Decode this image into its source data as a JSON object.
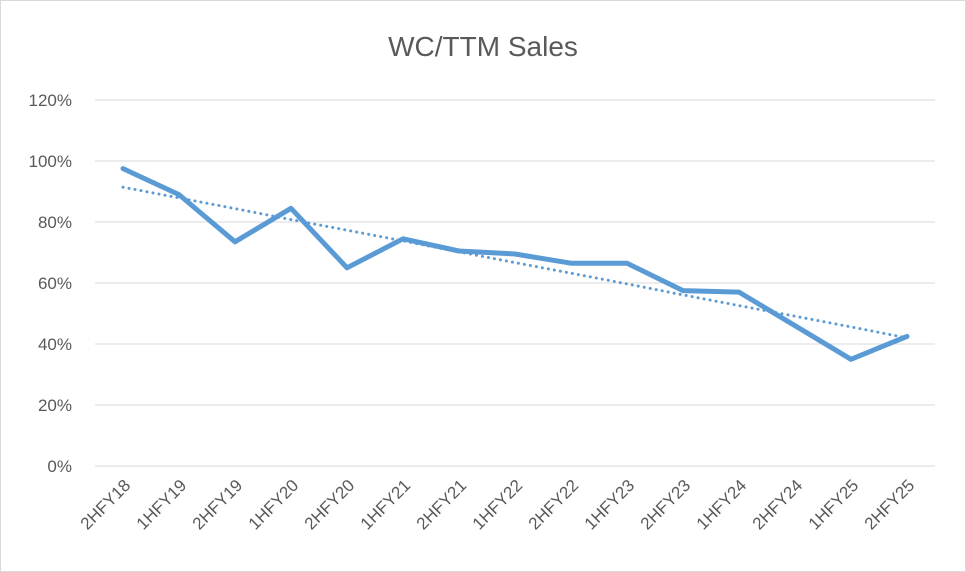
{
  "chart_data": {
    "type": "line",
    "title": "WC/TTM Sales",
    "xlabel": "",
    "ylabel": "",
    "categories": [
      "2HFY18",
      "1HFY19",
      "2HFY19",
      "1HFY20",
      "2HFY20",
      "1HFY21",
      "2HFY21",
      "1HFY22",
      "2HFY22",
      "1HFY23",
      "2HFY23",
      "1HFY24",
      "2HFY24",
      "1HFY25",
      "2HFY25"
    ],
    "series": [
      {
        "values": [
          97.5,
          89,
          73.5,
          84.5,
          65,
          74.5,
          70.5,
          69.5,
          66.5,
          66.5,
          57.5,
          57,
          46,
          35,
          42.5
        ],
        "color": "#5b9bd5",
        "style": "solid"
      },
      {
        "values": [
          91.4,
          87.9,
          84.4,
          80.8,
          77.3,
          73.8,
          70.2,
          66.7,
          63.2,
          59.7,
          56.1,
          52.6,
          49.1,
          45.6,
          42.0
        ],
        "color": "#5b9bd5",
        "style": "dotted",
        "trendline": "linear"
      }
    ],
    "ylim": [
      0,
      120
    ],
    "yticks": [
      0,
      20,
      40,
      60,
      80,
      100,
      120
    ],
    "ytick_labels": [
      "0%",
      "20%",
      "40%",
      "60%",
      "80%",
      "100%",
      "120%"
    ],
    "grid": true,
    "legend": "none"
  }
}
